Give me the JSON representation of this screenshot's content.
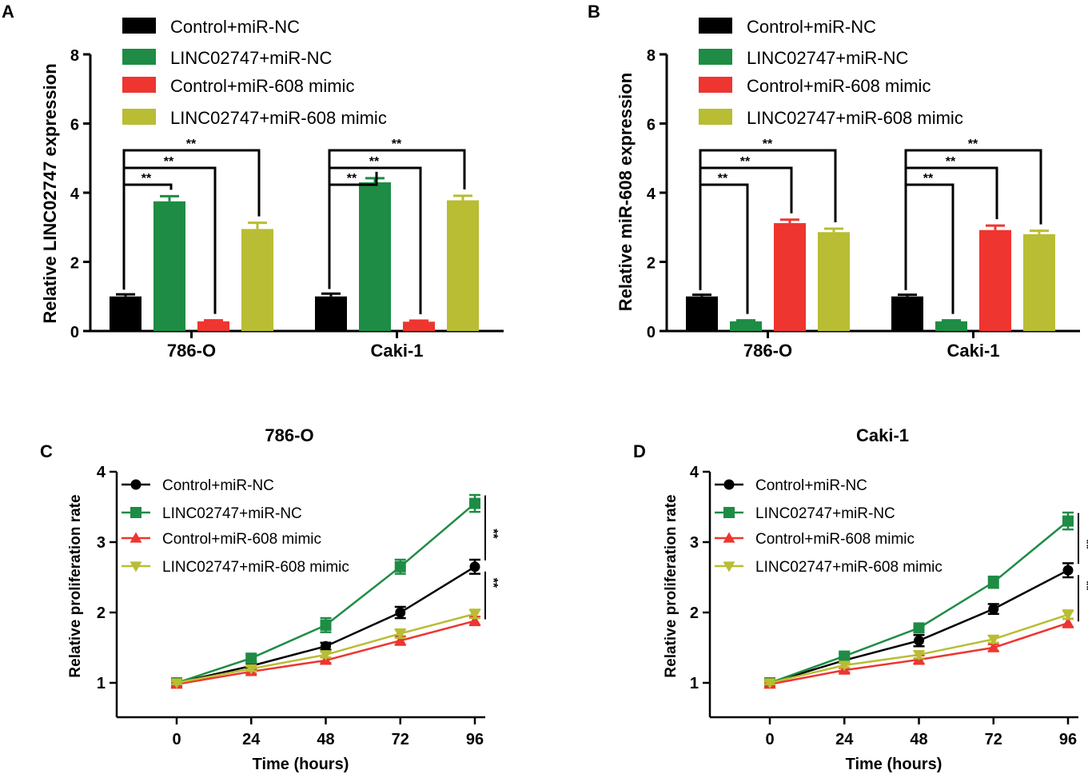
{
  "colors": {
    "control_nc": "#000000",
    "linc_nc": "#1e8c45",
    "control_mimic": "#ee3530",
    "linc_mimic": "#b8bd33"
  },
  "chart_data": [
    {
      "panel": "A",
      "type": "bar",
      "title": "",
      "ylabel": "Relative LINC02747 expression",
      "xlabel": "",
      "ylim": [
        0,
        8
      ],
      "yticks": [
        "0",
        "2",
        "4",
        "6",
        "8"
      ],
      "categories": [
        "786-O",
        "Caki-1"
      ],
      "series": [
        {
          "name": "Control+miR-NC",
          "values": [
            1.0,
            1.0
          ],
          "errors": [
            0.06,
            0.08
          ]
        },
        {
          "name": "LINC02747+miR-NC",
          "values": [
            3.75,
            4.3
          ],
          "errors": [
            0.15,
            0.12
          ]
        },
        {
          "name": "Control+miR-608 mimic",
          "values": [
            0.28,
            0.27
          ],
          "errors": [
            0.03,
            0.03
          ]
        },
        {
          "name": "LINC02747+miR-608 mimic",
          "values": [
            2.95,
            3.78
          ],
          "errors": [
            0.18,
            0.13
          ]
        }
      ],
      "significance": [
        "**",
        "**",
        "**",
        "**",
        "**",
        "**"
      ]
    },
    {
      "panel": "B",
      "type": "bar",
      "title": "",
      "ylabel": "Relative miR-608 expression",
      "xlabel": "",
      "ylim": [
        0,
        8
      ],
      "yticks": [
        "0",
        "2",
        "4",
        "6",
        "8"
      ],
      "categories": [
        "786-O",
        "Caki-1"
      ],
      "series": [
        {
          "name": "Control+miR-NC",
          "values": [
            1.0,
            1.0
          ],
          "errors": [
            0.05,
            0.05
          ]
        },
        {
          "name": "LINC02747+miR-NC",
          "values": [
            0.28,
            0.28
          ],
          "errors": [
            0.03,
            0.03
          ]
        },
        {
          "name": "Control+miR-608 mimic",
          "values": [
            3.12,
            2.92
          ],
          "errors": [
            0.1,
            0.13
          ]
        },
        {
          "name": "LINC02747+miR-608 mimic",
          "values": [
            2.86,
            2.8
          ],
          "errors": [
            0.1,
            0.1
          ]
        }
      ],
      "significance": [
        "**",
        "**",
        "**",
        "**",
        "**",
        "**"
      ]
    },
    {
      "panel": "C",
      "type": "line",
      "title": "786-O",
      "xlabel": "Time (hours)",
      "ylabel": "Relative proliferation rate",
      "ylim": [
        1,
        4
      ],
      "x": [
        0,
        24,
        48,
        72,
        96
      ],
      "xticks": [
        "0",
        "24",
        "48",
        "72",
        "96"
      ],
      "yticks": [
        "1",
        "2",
        "3",
        "4"
      ],
      "series": [
        {
          "name": "Control+miR-NC",
          "marker": "circle",
          "values": [
            1.0,
            1.24,
            1.52,
            2.0,
            2.65
          ],
          "errors": [
            0.02,
            0.04,
            0.05,
            0.08,
            0.1
          ]
        },
        {
          "name": "LINC02747+miR-NC",
          "marker": "square",
          "values": [
            1.0,
            1.35,
            1.82,
            2.65,
            3.55
          ],
          "errors": [
            0.02,
            0.05,
            0.1,
            0.1,
            0.12
          ]
        },
        {
          "name": "Control+miR-608 mimic",
          "marker": "triangle-up",
          "values": [
            0.98,
            1.16,
            1.32,
            1.6,
            1.88
          ],
          "errors": [
            0.02,
            0.03,
            0.04,
            0.06,
            0.06
          ]
        },
        {
          "name": "LINC02747+miR-608 mimic",
          "marker": "triangle-down",
          "values": [
            1.0,
            1.2,
            1.4,
            1.7,
            1.98
          ],
          "errors": [
            0.02,
            0.03,
            0.04,
            0.06,
            0.06
          ]
        }
      ],
      "significance": [
        "**",
        "**"
      ]
    },
    {
      "panel": "D",
      "type": "line",
      "title": "Caki-1",
      "xlabel": "Time (hours)",
      "ylabel": "Relative proliferation rate",
      "ylim": [
        1,
        4
      ],
      "x": [
        0,
        24,
        48,
        72,
        96
      ],
      "xticks": [
        "0",
        "24",
        "48",
        "72",
        "96"
      ],
      "yticks": [
        "1",
        "2",
        "3",
        "4"
      ],
      "series": [
        {
          "name": "Control+miR-NC",
          "marker": "circle",
          "values": [
            1.0,
            1.32,
            1.6,
            2.05,
            2.6
          ],
          "errors": [
            0.02,
            0.04,
            0.08,
            0.07,
            0.1
          ]
        },
        {
          "name": "LINC02747+miR-NC",
          "marker": "square",
          "values": [
            1.0,
            1.38,
            1.78,
            2.43,
            3.3
          ],
          "errors": [
            0.02,
            0.04,
            0.06,
            0.08,
            0.12
          ]
        },
        {
          "name": "Control+miR-608 mimic",
          "marker": "triangle-up",
          "values": [
            0.98,
            1.18,
            1.33,
            1.5,
            1.85
          ],
          "errors": [
            0.02,
            0.03,
            0.06,
            0.05,
            0.06
          ]
        },
        {
          "name": "LINC02747+miR-608 mimic",
          "marker": "triangle-down",
          "values": [
            1.0,
            1.25,
            1.4,
            1.62,
            1.97
          ],
          "errors": [
            0.02,
            0.03,
            0.05,
            0.05,
            0.06
          ]
        }
      ],
      "significance": [
        "**",
        "**"
      ]
    }
  ]
}
